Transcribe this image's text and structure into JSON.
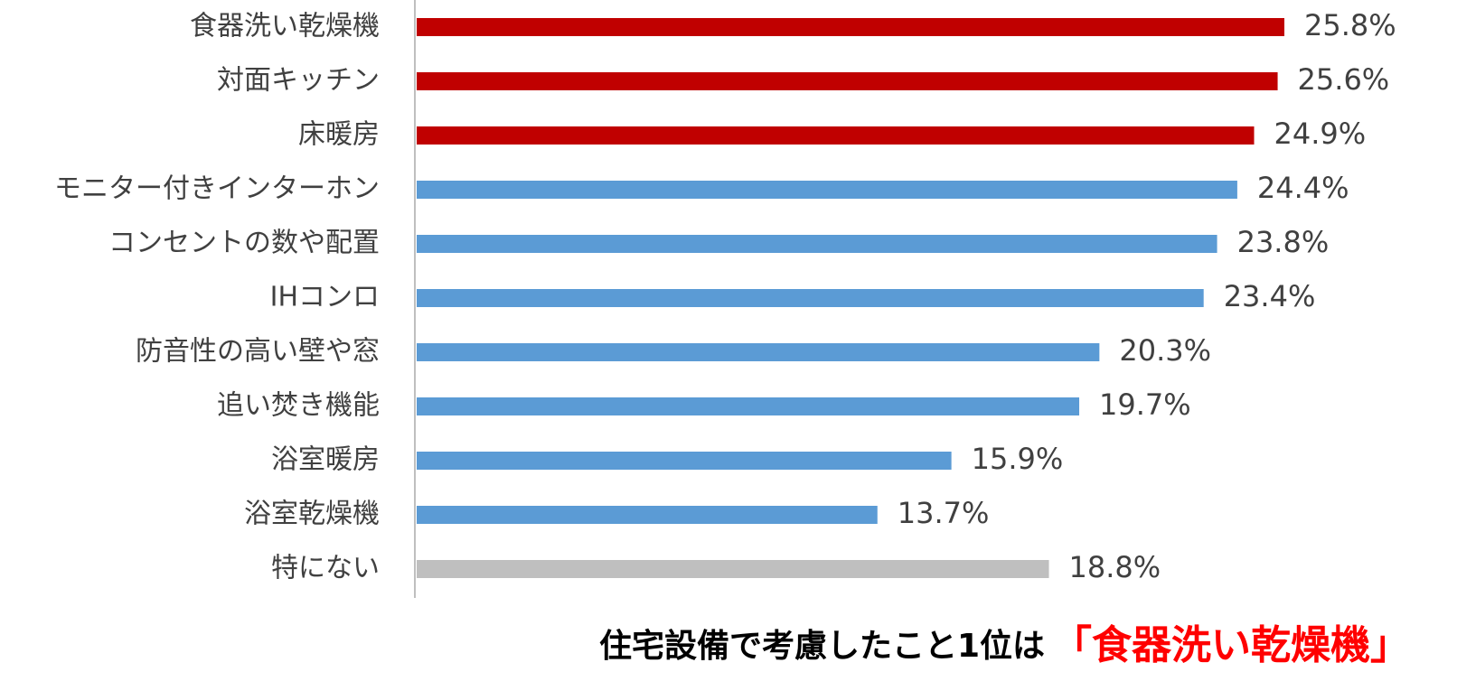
{
  "chart_data": {
    "type": "bar",
    "orientation": "horizontal",
    "title": "住宅設備で考慮したこと1位は",
    "title_highlight": "「食器洗い乾燥機」",
    "categories": [
      "食器洗い乾燥機",
      "対面キッチン",
      "床暖房",
      "モニター付きインターホン",
      "コンセントの数や配置",
      "IHコンロ",
      "防音性の高い壁や窓",
      "追い焚き機能",
      "浴室暖房",
      "浴室乾燥機",
      "特にない"
    ],
    "values": [
      25.8,
      25.6,
      24.9,
      24.4,
      23.8,
      23.4,
      20.3,
      19.7,
      15.9,
      13.7,
      18.8
    ],
    "value_labels": [
      "25.8%",
      "25.6%",
      "24.9%",
      "24.4%",
      "23.8%",
      "23.4%",
      "20.3%",
      "19.7%",
      "15.9%",
      "13.7%",
      "18.8%"
    ],
    "colors": [
      "#c00000",
      "#c00000",
      "#c00000",
      "#5b9bd5",
      "#5b9bd5",
      "#5b9bd5",
      "#5b9bd5",
      "#5b9bd5",
      "#5b9bd5",
      "#5b9bd5",
      "#bfbfbf"
    ]
  }
}
